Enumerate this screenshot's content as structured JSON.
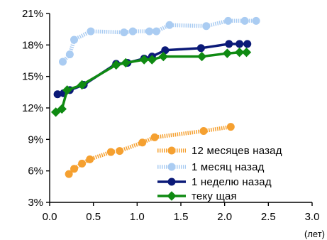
{
  "chart_data": {
    "type": "line",
    "x_unit": "(лет)",
    "xlim": [
      0,
      3.0
    ],
    "ylim": [
      3,
      21
    ],
    "x_ticks": [
      {
        "value": 0,
        "label": "0.0"
      },
      {
        "value": 0.5,
        "label": "0.5"
      },
      {
        "value": 1.0,
        "label": "1.0"
      },
      {
        "value": 1.5,
        "label": "1.5"
      },
      {
        "value": 2.0,
        "label": "2.0"
      },
      {
        "value": 2.5,
        "label": "2.5"
      },
      {
        "value": 3.0,
        "label": "3.0"
      }
    ],
    "y_ticks": [
      {
        "value": 3,
        "label": "3%"
      },
      {
        "value": 6,
        "label": "6%"
      },
      {
        "value": 9,
        "label": "9%"
      },
      {
        "value": 12,
        "label": "12%"
      },
      {
        "value": 15,
        "label": "15%"
      },
      {
        "value": 18,
        "label": "18%"
      },
      {
        "value": 21,
        "label": "21%"
      }
    ],
    "grid": false,
    "legend_position": "bottom-right",
    "series": [
      {
        "name": "12 месяцев назад",
        "color": "#f5a030",
        "marker": "circle",
        "line_style": "hatched",
        "points": [
          [
            0.22,
            5.7
          ],
          [
            0.28,
            6.2
          ],
          [
            0.37,
            6.7
          ],
          [
            0.46,
            7.1
          ],
          [
            0.7,
            7.8
          ],
          [
            0.8,
            7.9
          ],
          [
            1.06,
            8.7
          ],
          [
            1.2,
            9.2
          ],
          [
            1.76,
            9.8
          ],
          [
            2.07,
            10.2
          ]
        ]
      },
      {
        "name": "1 месяц назад",
        "color": "#aaccf2",
        "marker": "circle",
        "line_style": "hatched",
        "points": [
          [
            0.15,
            16.4
          ],
          [
            0.23,
            17.1
          ],
          [
            0.28,
            18.5
          ],
          [
            0.47,
            19.3
          ],
          [
            0.85,
            19.2
          ],
          [
            0.95,
            19.3
          ],
          [
            1.14,
            19.3
          ],
          [
            1.22,
            19.3
          ],
          [
            1.37,
            19.9
          ],
          [
            1.79,
            19.8
          ],
          [
            2.04,
            20.3
          ],
          [
            2.23,
            20.3
          ],
          [
            2.36,
            20.3
          ]
        ]
      },
      {
        "name": "1 неделю назад",
        "color": "#0b1a78",
        "marker": "circle",
        "line_style": "solid",
        "points": [
          [
            0.09,
            13.3
          ],
          [
            0.16,
            13.4
          ],
          [
            0.23,
            13.7
          ],
          [
            0.39,
            14.2
          ],
          [
            0.76,
            16.2
          ],
          [
            0.89,
            16.3
          ],
          [
            1.08,
            16.7
          ],
          [
            1.17,
            16.9
          ],
          [
            1.32,
            17.5
          ],
          [
            1.73,
            17.7
          ],
          [
            2.05,
            18.1
          ],
          [
            2.17,
            18.1
          ],
          [
            2.26,
            18.1
          ]
        ]
      },
      {
        "name": "теку щая",
        "color": "#0f8a12",
        "marker": "diamond",
        "line_style": "solid",
        "points": [
          [
            0.07,
            11.6
          ],
          [
            0.14,
            11.9
          ],
          [
            0.2,
            13.7
          ],
          [
            0.37,
            14.2
          ],
          [
            0.76,
            16.1
          ],
          [
            0.87,
            16.3
          ],
          [
            1.08,
            16.6
          ],
          [
            1.17,
            16.6
          ],
          [
            1.3,
            16.9
          ],
          [
            1.74,
            16.9
          ],
          [
            2.03,
            17.2
          ],
          [
            2.17,
            17.3
          ],
          [
            2.25,
            17.3
          ]
        ]
      }
    ]
  }
}
